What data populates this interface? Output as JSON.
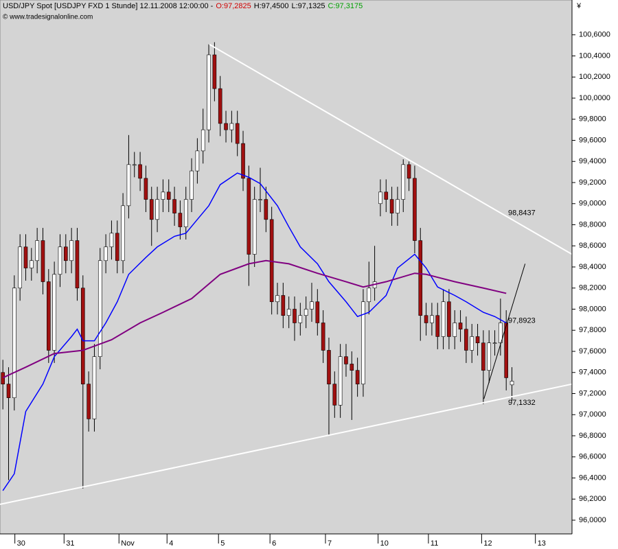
{
  "chart_data": {
    "type": "candlestick",
    "title": "USD/JPY Spot [USDJPY FXD  1 Stunde] 12.11.2008 12:00:00 -",
    "ohlc_labels": [
      {
        "text": "O:97,2825",
        "color": "#d00000"
      },
      {
        "text": "H:97,4500",
        "color": "#000000"
      },
      {
        "text": "L:97,1325",
        "color": "#000000"
      },
      {
        "text": "C:97,3175",
        "color": "#00a000"
      }
    ],
    "subtitle": "© www.tradesignalonline.com",
    "y_axis_label": "¥",
    "up_color": "#ffffff",
    "down_color": "#a01010",
    "wick_color": "#000000",
    "background": "#d4d4d4",
    "xlim": [
      -0.5,
      99.5
    ],
    "ylim": [
      95.87,
      100.93
    ],
    "xticks": [
      {
        "value": 2.1,
        "label": "30"
      },
      {
        "value": 10.7,
        "label": "31"
      },
      {
        "value": 20.3,
        "label": "Nov"
      },
      {
        "value": 28.7,
        "label": "4"
      },
      {
        "value": 37.7,
        "label": "5"
      },
      {
        "value": 46.7,
        "label": "6"
      },
      {
        "value": 56.4,
        "label": "7"
      },
      {
        "value": 65.6,
        "label": "10"
      },
      {
        "value": 74.4,
        "label": "11"
      },
      {
        "value": 83.7,
        "label": "12"
      },
      {
        "value": 93.1,
        "label": "13"
      }
    ],
    "yticks": [
      {
        "value": 96.0,
        "label": "96,0000"
      },
      {
        "value": 96.2,
        "label": "96,2000"
      },
      {
        "value": 96.4,
        "label": "96,4000"
      },
      {
        "value": 96.6,
        "label": "96,6000"
      },
      {
        "value": 96.8,
        "label": "96,8000"
      },
      {
        "value": 97.0,
        "label": "97,0000"
      },
      {
        "value": 97.2,
        "label": "97,2000"
      },
      {
        "value": 97.4,
        "label": "97,4000"
      },
      {
        "value": 97.6,
        "label": "97,6000"
      },
      {
        "value": 97.8,
        "label": "97,8000"
      },
      {
        "value": 98.0,
        "label": "98,0000"
      },
      {
        "value": 98.2,
        "label": "98,2000"
      },
      {
        "value": 98.4,
        "label": "98,4000"
      },
      {
        "value": 98.6,
        "label": "98,6000"
      },
      {
        "value": 98.8,
        "label": "98,8000"
      },
      {
        "value": 99.0,
        "label": "99,0000"
      },
      {
        "value": 99.2,
        "label": "99,2000"
      },
      {
        "value": 99.4,
        "label": "99,4000"
      },
      {
        "value": 99.6,
        "label": "99,6000"
      },
      {
        "value": 99.8,
        "label": "99,8000"
      },
      {
        "value": 100.0,
        "label": "100,0000"
      },
      {
        "value": 100.2,
        "label": "100,2000"
      },
      {
        "value": 100.4,
        "label": "100,4000"
      },
      {
        "value": 100.6,
        "label": "100,6000"
      }
    ],
    "open": [
      97.4,
      97.29,
      97.16,
      98.2,
      98.59,
      98.39,
      98.46,
      98.65,
      98.26,
      97.61,
      98.33,
      98.59,
      98.46,
      98.65,
      98.2,
      97.29,
      96.96,
      97.55,
      98.46,
      98.59,
      98.72,
      98.46,
      98.98,
      99.37,
      99.37,
      99.24,
      99.04,
      98.85,
      99.04,
      99.11,
      99.04,
      98.91,
      98.78,
      99.04,
      99.31,
      99.5,
      99.7,
      100.41,
      100.09,
      99.76,
      99.7,
      99.76,
      99.57,
      99.24,
      98.52,
      99.04,
      99.04,
      98.85,
      98.07,
      98.13,
      97.94,
      98.0,
      97.87,
      97.94,
      98.0,
      98.07,
      97.87,
      97.61,
      97.29,
      97.09,
      97.55,
      97.48,
      97.42,
      97.29,
      98.07,
      98.2,
      99.0,
      99.11,
      99.04,
      98.91,
      99.04,
      99.37,
      99.24,
      98.65,
      97.94,
      97.87,
      97.94,
      97.74,
      98.07,
      97.74,
      97.87,
      97.81,
      97.61,
      97.74,
      97.68,
      97.42,
      97.68,
      97.68,
      97.87,
      97.2825
    ],
    "high": [
      97.52,
      97.45,
      98.32,
      98.71,
      98.71,
      98.58,
      98.77,
      98.77,
      98.38,
      98.45,
      98.71,
      98.71,
      98.77,
      98.77,
      98.32,
      97.41,
      97.67,
      98.58,
      98.71,
      98.84,
      98.84,
      99.1,
      99.65,
      99.49,
      99.49,
      99.36,
      99.16,
      99.16,
      99.23,
      99.23,
      99.16,
      99.03,
      99.16,
      99.43,
      99.62,
      99.9,
      100.51,
      100.53,
      100.21,
      99.88,
      99.88,
      99.88,
      99.69,
      99.36,
      99.16,
      99.34,
      99.16,
      98.97,
      98.25,
      98.25,
      98.12,
      98.12,
      98.06,
      98.12,
      98.25,
      98.19,
      97.99,
      97.73,
      97.41,
      97.67,
      97.67,
      97.6,
      97.54,
      98.19,
      98.45,
      98.6,
      99.23,
      99.23,
      99.16,
      99.16,
      99.42,
      99.4,
      99.36,
      98.77,
      98.06,
      98.06,
      98.06,
      98.19,
      98.19,
      97.99,
      97.99,
      97.93,
      97.86,
      97.86,
      97.8,
      97.8,
      97.8,
      98.1,
      97.99,
      97.45
    ],
    "low": [
      97.05,
      96.38,
      97.04,
      98.08,
      98.27,
      98.27,
      98.34,
      98.14,
      97.49,
      97.49,
      98.21,
      98.34,
      98.34,
      98.08,
      96.3,
      96.84,
      96.84,
      97.43,
      98.34,
      98.47,
      98.34,
      98.34,
      98.86,
      99.25,
      99.12,
      98.92,
      98.6,
      98.73,
      98.92,
      98.92,
      98.79,
      98.66,
      98.66,
      98.92,
      99.19,
      99.38,
      99.58,
      99.97,
      99.64,
      99.58,
      99.58,
      99.45,
      99.12,
      98.22,
      98.4,
      98.92,
      98.73,
      97.95,
      97.95,
      97.82,
      97.82,
      97.7,
      97.75,
      97.82,
      97.88,
      97.75,
      97.49,
      96.8,
      96.97,
      96.97,
      97.36,
      96.95,
      97.17,
      97.17,
      97.95,
      98.08,
      98.88,
      98.92,
      98.79,
      98.79,
      98.92,
      99.12,
      98.53,
      97.7,
      97.75,
      97.75,
      97.62,
      97.62,
      97.62,
      97.62,
      97.69,
      97.49,
      97.49,
      97.56,
      97.1,
      97.3,
      97.56,
      97.56,
      97.23,
      97.1325
    ],
    "close": [
      97.29,
      97.16,
      98.2,
      98.59,
      98.39,
      98.46,
      98.65,
      98.26,
      97.61,
      98.33,
      98.59,
      98.46,
      98.65,
      98.2,
      97.29,
      96.96,
      97.55,
      98.46,
      98.59,
      98.72,
      98.46,
      98.98,
      99.37,
      99.37,
      99.24,
      99.04,
      98.85,
      99.04,
      99.11,
      99.04,
      98.91,
      98.78,
      99.04,
      99.31,
      99.5,
      99.7,
      100.41,
      100.09,
      99.76,
      99.7,
      99.76,
      99.57,
      99.24,
      98.52,
      99.04,
      99.04,
      98.85,
      98.07,
      98.13,
      97.94,
      98.0,
      97.87,
      97.94,
      98.0,
      98.07,
      97.87,
      97.61,
      97.29,
      97.09,
      97.55,
      97.48,
      97.42,
      97.29,
      98.07,
      98.2,
      98.26,
      99.11,
      99.04,
      98.91,
      99.04,
      99.37,
      99.24,
      98.65,
      97.94,
      97.87,
      97.94,
      97.74,
      98.07,
      97.74,
      97.87,
      97.81,
      97.61,
      97.74,
      97.68,
      97.42,
      97.68,
      97.68,
      97.87,
      97.35,
      97.3175
    ],
    "series": [
      {
        "color": "#0000ff",
        "x": [
          0,
          2,
          4,
          7,
          9,
          12,
          13,
          14,
          16,
          18,
          20,
          22,
          25,
          27,
          30,
          32,
          34,
          36,
          38,
          41,
          43,
          45,
          48,
          50,
          52,
          55,
          57,
          60,
          62,
          64,
          67,
          69,
          72,
          74,
          76,
          79,
          81,
          84,
          86,
          88
        ],
        "values": [
          96.28,
          96.44,
          97.03,
          97.29,
          97.55,
          97.74,
          97.81,
          97.7,
          97.7,
          97.87,
          98.07,
          98.33,
          98.49,
          98.59,
          98.69,
          98.72,
          98.85,
          98.98,
          99.18,
          99.29,
          99.25,
          99.19,
          98.98,
          98.78,
          98.59,
          98.43,
          98.26,
          98.07,
          97.93,
          97.97,
          98.13,
          98.39,
          98.52,
          98.39,
          98.21,
          98.13,
          98.07,
          97.97,
          97.93,
          97.87
        ]
      },
      {
        "color": "#800080",
        "x": [
          0,
          4,
          9,
          14,
          19,
          24,
          28,
          33,
          38,
          43,
          46,
          50,
          55,
          60,
          63,
          67,
          72,
          74,
          79,
          84,
          88
        ],
        "values": [
          97.35,
          97.45,
          97.58,
          97.61,
          97.71,
          97.87,
          97.97,
          98.1,
          98.33,
          98.43,
          98.46,
          98.43,
          98.34,
          98.26,
          98.21,
          98.26,
          98.34,
          98.33,
          98.26,
          98.2,
          98.15
        ]
      }
    ],
    "trendlines": [
      {
        "points": [
          [
            36.1,
            100.51
          ],
          [
            99.5,
            98.52
          ]
        ],
        "color": "#ffffff",
        "label": "98,8437"
      },
      {
        "points": [
          [
            -0.5,
            96.15
          ],
          [
            99.5,
            97.29
          ]
        ],
        "color": "#ffffff",
        "label": "97,1332"
      },
      {
        "points": [
          [
            84.1,
            97.15
          ],
          [
            91.3,
            98.43
          ]
        ],
        "color": "#000000",
        "label": "97,8923"
      }
    ]
  }
}
